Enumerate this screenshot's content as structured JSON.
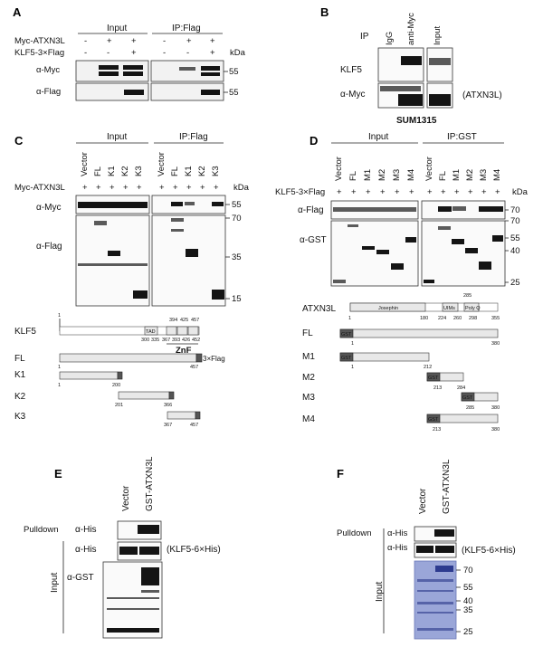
{
  "panelA": {
    "label": "A",
    "headers": [
      "Input",
      "IP:Flag"
    ],
    "row1": "Myc-ATXN3L",
    "row1_signs": [
      "-",
      "+",
      "+",
      "-",
      "+",
      "+"
    ],
    "row2": "KLF5-3×Flag",
    "row2_signs": [
      "-",
      "-",
      "+",
      "-",
      "-",
      "+"
    ],
    "kda": "kDa",
    "blots": [
      "α-Myc",
      "α-Flag"
    ],
    "markers": [
      "55",
      "55"
    ]
  },
  "panelB": {
    "label": "B",
    "ip": "IP",
    "lanes": [
      "IgG",
      "anti-Myc",
      "Input"
    ],
    "blots": [
      "KLF5",
      "α-Myc"
    ],
    "annotation": "(ATXN3L)",
    "cell": "SUM1315"
  },
  "panelC": {
    "label": "C",
    "headers": [
      "Input",
      "IP:Flag"
    ],
    "lanes": [
      "Vector",
      "FL",
      "K1",
      "K2",
      "K3",
      "Vector",
      "FL",
      "K1",
      "K2",
      "K3"
    ],
    "row1": "Myc-ATXN3L",
    "signs": [
      "+",
      "+",
      "+",
      "+",
      "+",
      "+",
      "+",
      "+",
      "+",
      "+"
    ],
    "kda": "kDa",
    "blots": [
      "α-Myc",
      "α-Flag"
    ],
    "markers": [
      "55",
      "70",
      "35",
      "15"
    ],
    "diagram": {
      "klf5": "KLF5",
      "tad": "TAD",
      "znf": "ZnF",
      "klf5_top": [
        "394",
        "425",
        "457"
      ],
      "klf5_bottom": [
        "300",
        "335",
        "367",
        "393",
        "426",
        "452"
      ],
      "constructs": [
        {
          "name": "FL",
          "start": "1",
          "end": "457",
          "tag": "3×Flag"
        },
        {
          "name": "K1",
          "start": "1",
          "end": "200"
        },
        {
          "name": "K2",
          "start": "201",
          "end": "366"
        },
        {
          "name": "K3",
          "start": "367",
          "end": "457"
        }
      ],
      "klf5_start": "1"
    }
  },
  "panelD": {
    "label": "D",
    "headers": [
      "Input",
      "IP:GST"
    ],
    "lanes": [
      "Vector",
      "FL",
      "M1",
      "M2",
      "M3",
      "M4",
      "Vector",
      "FL",
      "M1",
      "M2",
      "M3",
      "M4"
    ],
    "row1": "KLF5-3×Flag",
    "signs": [
      "+",
      "+",
      "+",
      "+",
      "+",
      "+",
      "+",
      "+",
      "+",
      "+",
      "+",
      "+"
    ],
    "kda": "kDa",
    "blots": [
      "α-Flag",
      "α-GST"
    ],
    "markers": [
      "70",
      "70",
      "55",
      "40",
      "25"
    ],
    "diagram": {
      "atxn3l": "ATXN3L",
      "josephin": "Josephin",
      "uims": "UIMs",
      "polyq": "Poly Q",
      "top": [
        "285"
      ],
      "bottom": [
        "1",
        "180",
        "224",
        "260",
        "298",
        "355"
      ],
      "gst": "GST",
      "constructs": [
        {
          "name": "FL",
          "start": "1",
          "end": "380"
        },
        {
          "name": "M1",
          "start": "1",
          "end": "212"
        },
        {
          "name": "M2",
          "start": "213",
          "end": "284"
        },
        {
          "name": "M3",
          "start": "285",
          "end": "380"
        },
        {
          "name": "M4",
          "start": "213",
          "end": "380"
        }
      ]
    }
  },
  "panelE": {
    "label": "E",
    "lanes": [
      "Vector",
      "GST-ATXN3L"
    ],
    "pulldown": "Pulldown",
    "input": "Input",
    "blots": [
      "α-His",
      "α-His",
      "α-GST"
    ],
    "annotation": "(KLF5-6×His)"
  },
  "panelF": {
    "label": "F",
    "lanes": [
      "Vector",
      "GST-ATXN3L"
    ],
    "pulldown": "Pulldown",
    "input": "Input",
    "blots": [
      "α-His",
      "α-His"
    ],
    "annotation": "(KLF5-6×His)",
    "markers": [
      "70",
      "55",
      "40",
      "35",
      "25"
    ]
  }
}
